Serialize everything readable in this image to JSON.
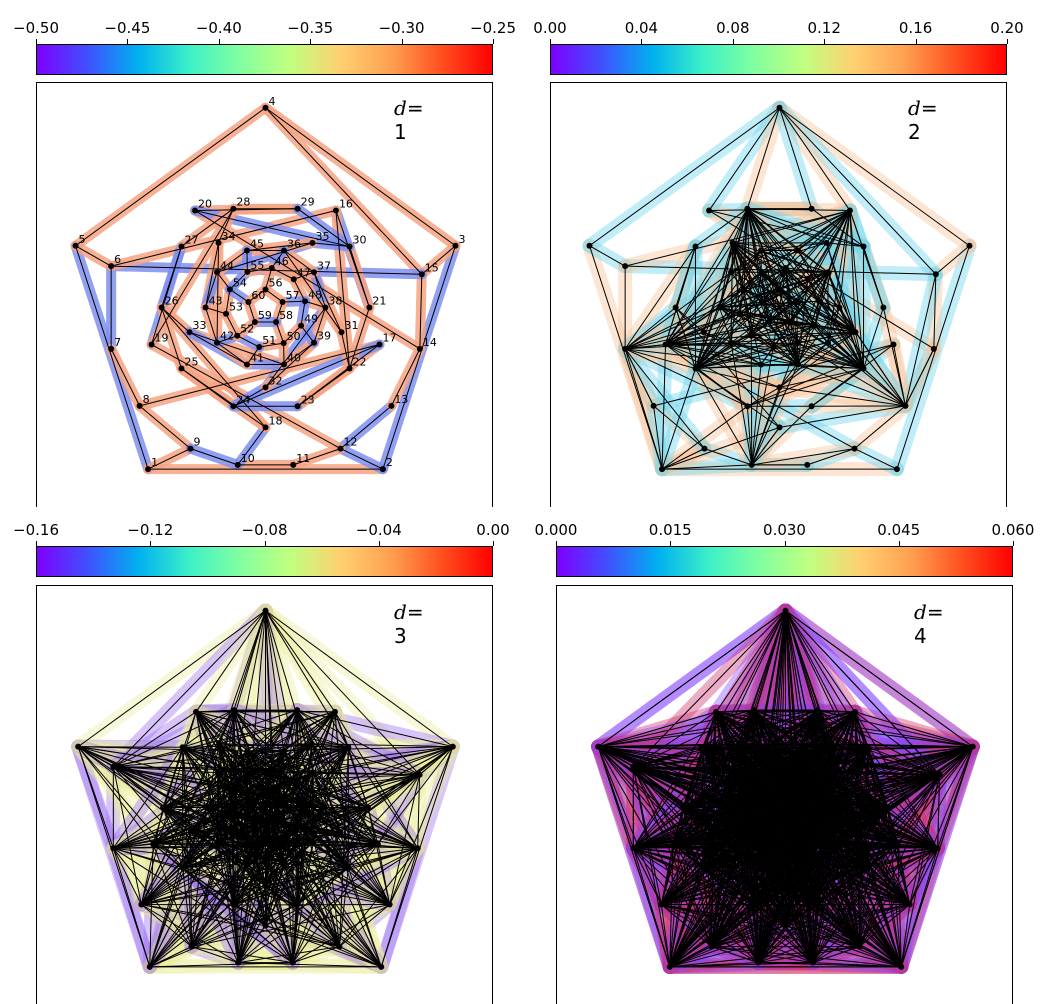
{
  "colors": {
    "d1_blue": "#7f8ff0",
    "d1_orange": "#f6a383",
    "d2_cyan": "#74d8ee",
    "d2_peach": "#f9c69e",
    "d3_violet": "#9b6ff3",
    "d3_yellow": "#eaee9a",
    "d4_magenta": "#d0306a",
    "d4_violet": "#8a4cff"
  },
  "panels": [
    {
      "d_symbol": "d",
      "d_value": "= 1",
      "colorbar": {
        "ticks": [
          "−0.50",
          "−0.45",
          "−0.40",
          "−0.35",
          "−0.30",
          "−0.25"
        ],
        "range": [
          -0.5,
          -0.25
        ]
      },
      "node_labels": [
        "1",
        "2",
        "3",
        "4",
        "5",
        "6",
        "7",
        "8",
        "9",
        "10",
        "11",
        "12",
        "13",
        "14",
        "15",
        "16",
        "17",
        "18",
        "19",
        "20",
        "21",
        "22",
        "23",
        "24",
        "25",
        "26",
        "27",
        "28",
        "29",
        "30",
        "31",
        "32",
        "33",
        "34",
        "35",
        "36",
        "37",
        "38",
        "39",
        "40",
        "41",
        "42",
        "43",
        "44",
        "45",
        "46",
        "47",
        "48",
        "49",
        "50",
        "51",
        "52",
        "53",
        "54",
        "55",
        "56",
        "57",
        "58",
        "59",
        "60"
      ]
    },
    {
      "d_symbol": "d",
      "d_value": "= 2",
      "colorbar": {
        "ticks": [
          "0.00",
          "0.04",
          "0.08",
          "0.12",
          "0.16",
          "0.20"
        ],
        "range": [
          0,
          0.2
        ]
      }
    },
    {
      "d_symbol": "d",
      "d_value": "= 3",
      "colorbar": {
        "ticks": [
          "−0.16",
          "−0.12",
          "−0.08",
          "−0.04",
          "0.00"
        ],
        "range": [
          -0.16,
          0
        ]
      }
    },
    {
      "d_symbol": "d",
      "d_value": "= 4",
      "colorbar": {
        "ticks": [
          "0.000",
          "0.015",
          "0.030",
          "0.045",
          "0.060"
        ],
        "range": [
          0,
          0.06
        ]
      }
    }
  ]
}
